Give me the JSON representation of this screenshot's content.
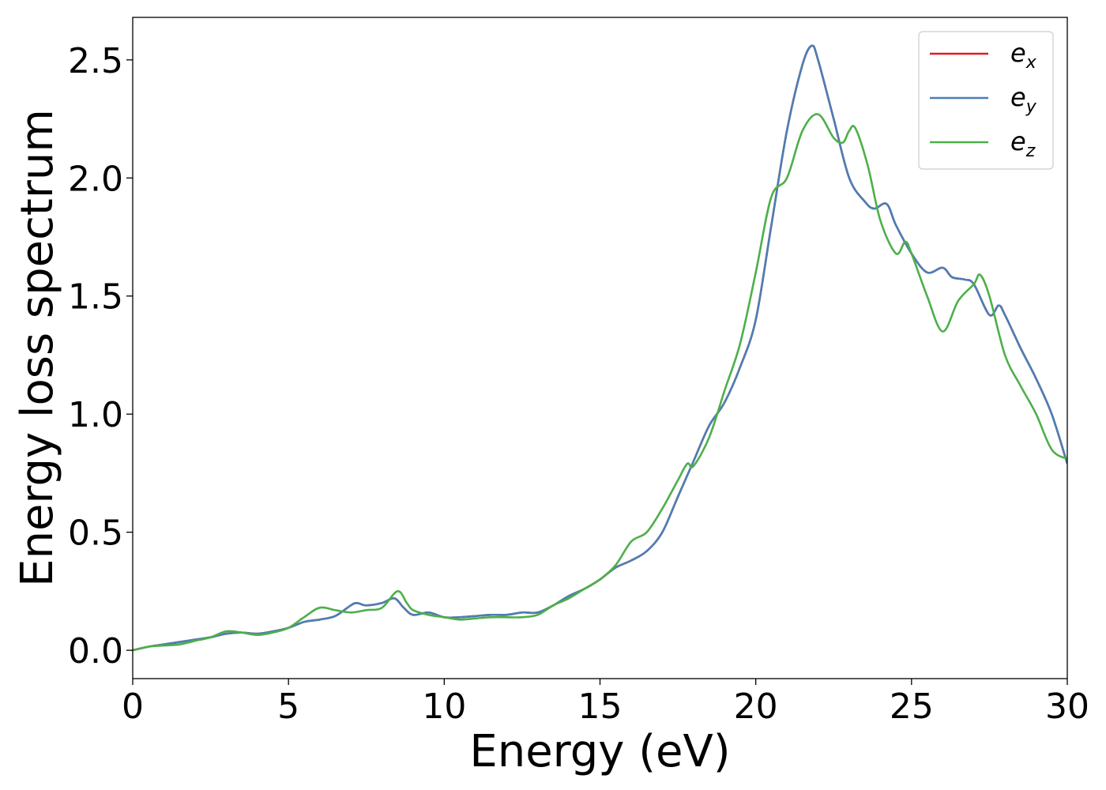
{
  "chart_data": {
    "type": "line",
    "title": "",
    "xlabel": "Energy (eV)",
    "ylabel": "Energy loss spectrum",
    "xlim": [
      0,
      30
    ],
    "ylim": [
      -0.12,
      2.68
    ],
    "xticks": [
      0,
      5,
      10,
      15,
      20,
      25,
      30
    ],
    "xtick_labels": [
      "0",
      "5",
      "10",
      "15",
      "20",
      "25",
      "30"
    ],
    "yticks": [
      0.0,
      0.5,
      1.0,
      1.5,
      2.0,
      2.5
    ],
    "ytick_labels": [
      "0.0",
      "0.5",
      "1.0",
      "1.5",
      "2.0",
      "2.5"
    ],
    "grid": false,
    "legend_position": "top-right",
    "series": [
      {
        "name": "e_x",
        "label_base": "e",
        "label_sub": "x",
        "color": "#e41a1c",
        "x": [
          0,
          0.5,
          1,
          1.5,
          2,
          2.5,
          3,
          3.5,
          4,
          4.5,
          5,
          5.5,
          6,
          6.5,
          7,
          7.2,
          7.5,
          8,
          8.4,
          8.7,
          9,
          9.5,
          10,
          10.5,
          11,
          11.5,
          12,
          12.5,
          13,
          13.5,
          14,
          14.5,
          15,
          15.5,
          16,
          16.5,
          17,
          17.5,
          18,
          18.5,
          19,
          19.5,
          20,
          20.5,
          21,
          21.5,
          21.8,
          22,
          22.5,
          23,
          23.5,
          23.8,
          24.2,
          24.5,
          25,
          25.5,
          26,
          26.3,
          26.7,
          27,
          27.5,
          27.8,
          28,
          28.5,
          29,
          29.5,
          30
        ],
        "y": [
          0.0,
          0.015,
          0.025,
          0.035,
          0.045,
          0.055,
          0.07,
          0.075,
          0.07,
          0.08,
          0.095,
          0.12,
          0.13,
          0.145,
          0.19,
          0.2,
          0.19,
          0.2,
          0.22,
          0.18,
          0.15,
          0.16,
          0.14,
          0.14,
          0.145,
          0.15,
          0.15,
          0.16,
          0.16,
          0.19,
          0.23,
          0.26,
          0.3,
          0.35,
          0.38,
          0.42,
          0.5,
          0.65,
          0.8,
          0.95,
          1.05,
          1.2,
          1.4,
          1.8,
          2.2,
          2.48,
          2.56,
          2.5,
          2.25,
          2.0,
          1.9,
          1.87,
          1.89,
          1.8,
          1.68,
          1.6,
          1.62,
          1.58,
          1.57,
          1.55,
          1.42,
          1.46,
          1.42,
          1.28,
          1.15,
          1.0,
          0.79
        ]
      },
      {
        "name": "e_y",
        "label_base": "e",
        "label_sub": "y",
        "color": "#4a7fb5",
        "x": [
          0,
          0.5,
          1,
          1.5,
          2,
          2.5,
          3,
          3.5,
          4,
          4.5,
          5,
          5.5,
          6,
          6.5,
          7,
          7.2,
          7.5,
          8,
          8.4,
          8.7,
          9,
          9.5,
          10,
          10.5,
          11,
          11.5,
          12,
          12.5,
          13,
          13.5,
          14,
          14.5,
          15,
          15.5,
          16,
          16.5,
          17,
          17.5,
          18,
          18.5,
          19,
          19.5,
          20,
          20.5,
          21,
          21.5,
          21.8,
          22,
          22.5,
          23,
          23.5,
          23.8,
          24.2,
          24.5,
          25,
          25.5,
          26,
          26.3,
          26.7,
          27,
          27.5,
          27.8,
          28,
          28.5,
          29,
          29.5,
          30
        ],
        "y": [
          0.0,
          0.015,
          0.025,
          0.035,
          0.045,
          0.055,
          0.07,
          0.075,
          0.07,
          0.08,
          0.095,
          0.12,
          0.13,
          0.145,
          0.19,
          0.2,
          0.19,
          0.2,
          0.22,
          0.18,
          0.15,
          0.16,
          0.14,
          0.14,
          0.145,
          0.15,
          0.15,
          0.16,
          0.16,
          0.19,
          0.23,
          0.26,
          0.3,
          0.35,
          0.38,
          0.42,
          0.5,
          0.65,
          0.8,
          0.95,
          1.05,
          1.2,
          1.4,
          1.8,
          2.2,
          2.48,
          2.56,
          2.5,
          2.25,
          2.0,
          1.9,
          1.87,
          1.89,
          1.8,
          1.68,
          1.6,
          1.62,
          1.58,
          1.57,
          1.55,
          1.42,
          1.46,
          1.42,
          1.28,
          1.15,
          1.0,
          0.79
        ]
      },
      {
        "name": "e_z",
        "label_base": "e",
        "label_sub": "z",
        "color": "#4daf4a",
        "x": [
          0,
          0.5,
          1,
          1.5,
          2,
          2.5,
          3,
          3.5,
          4,
          4.5,
          5,
          5.5,
          6,
          6.5,
          7,
          7.5,
          8,
          8.5,
          8.8,
          9,
          9.5,
          10,
          10.5,
          11,
          11.5,
          12,
          12.5,
          13,
          13.5,
          14,
          14.5,
          15,
          15.5,
          16,
          16.5,
          17,
          17.5,
          17.8,
          18,
          18.5,
          19,
          19.5,
          20,
          20.5,
          21,
          21.5,
          22,
          22.5,
          22.8,
          23,
          23.2,
          23.6,
          24,
          24.5,
          24.8,
          25,
          25.5,
          26,
          26.5,
          27,
          27.2,
          27.5,
          28,
          28.5,
          29,
          29.5,
          30
        ],
        "y": [
          0.0,
          0.015,
          0.02,
          0.025,
          0.04,
          0.055,
          0.08,
          0.075,
          0.065,
          0.075,
          0.095,
          0.14,
          0.18,
          0.17,
          0.16,
          0.17,
          0.18,
          0.25,
          0.2,
          0.17,
          0.15,
          0.14,
          0.13,
          0.135,
          0.14,
          0.14,
          0.14,
          0.15,
          0.19,
          0.22,
          0.26,
          0.3,
          0.36,
          0.46,
          0.5,
          0.6,
          0.72,
          0.79,
          0.78,
          0.9,
          1.1,
          1.3,
          1.6,
          1.92,
          2.0,
          2.2,
          2.27,
          2.17,
          2.15,
          2.2,
          2.21,
          2.05,
          1.82,
          1.68,
          1.73,
          1.68,
          1.5,
          1.35,
          1.48,
          1.55,
          1.59,
          1.5,
          1.25,
          1.12,
          1.0,
          0.85,
          0.81
        ]
      }
    ]
  }
}
